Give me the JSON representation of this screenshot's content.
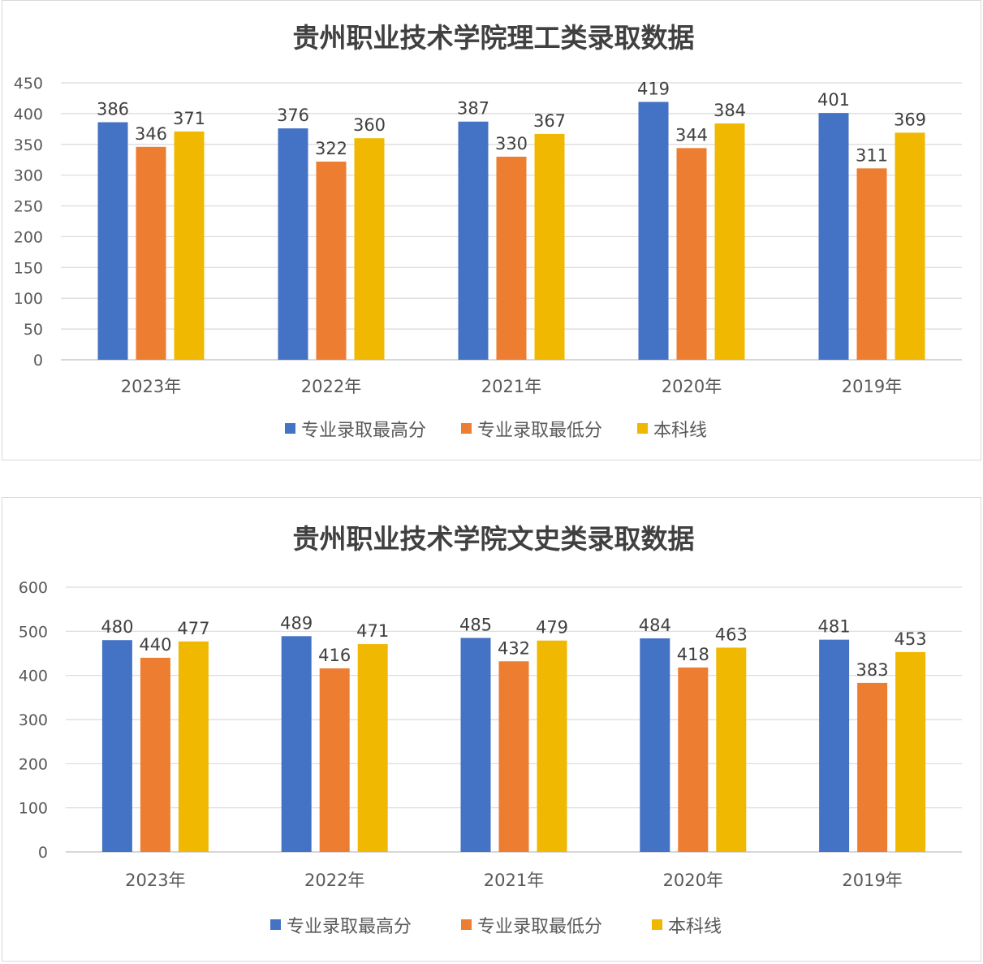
{
  "chart_data": [
    {
      "type": "bar",
      "title": "贵州职业技术学院理工类录取数据",
      "categories": [
        "2023年",
        "2022年",
        "2021年",
        "2020年",
        "2019年"
      ],
      "series": [
        {
          "name": "专业录取最高分",
          "values": [
            386,
            376,
            387,
            419,
            401
          ],
          "color": "#4472c4"
        },
        {
          "name": "专业录取最低分",
          "values": [
            346,
            322,
            330,
            344,
            311
          ],
          "color": "#ed7d31"
        },
        {
          "name": "本科线",
          "values": [
            371,
            360,
            367,
            384,
            369
          ],
          "color": "#f0b800"
        }
      ],
      "ylim": [
        0,
        450
      ],
      "yticks": [
        "0",
        "50",
        "100",
        "150",
        "200",
        "250",
        "300",
        "350",
        "400",
        "450"
      ],
      "grid": true,
      "legend": "bottom"
    },
    {
      "type": "bar",
      "title": "贵州职业技术学院文史类录取数据",
      "categories": [
        "2023年",
        "2022年",
        "2021年",
        "2020年",
        "2019年"
      ],
      "series": [
        {
          "name": "专业录取最高分",
          "values": [
            480,
            489,
            485,
            484,
            481
          ],
          "color": "#4472c4"
        },
        {
          "name": "专业录取最低分",
          "values": [
            440,
            416,
            432,
            418,
            383
          ],
          "color": "#ed7d31"
        },
        {
          "name": "本科线",
          "values": [
            477,
            471,
            479,
            463,
            453
          ],
          "color": "#f0b800"
        }
      ],
      "ylim": [
        0,
        600
      ],
      "yticks": [
        "0",
        "100",
        "200",
        "300",
        "400",
        "500",
        "600"
      ],
      "grid": true,
      "legend": "bottom"
    }
  ]
}
